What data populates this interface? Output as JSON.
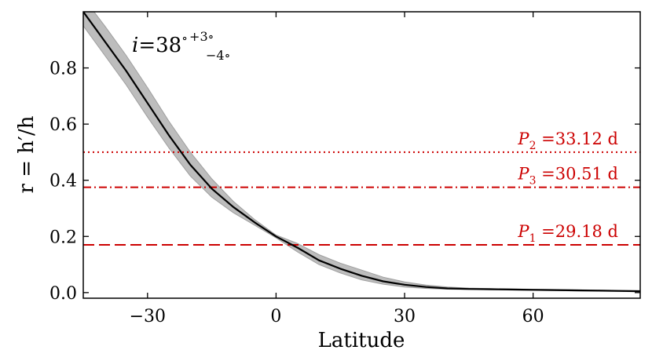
{
  "chart_data": {
    "type": "line",
    "xlabel": "Latitude",
    "ylabel": "r = h′/h",
    "xlim": [
      -45,
      85
    ],
    "ylim": [
      -0.02,
      1.0
    ],
    "xticks": [
      -30,
      0,
      30,
      60
    ],
    "xtick_labels": [
      "−30",
      "0",
      "30",
      "60"
    ],
    "yticks": [
      0.0,
      0.2,
      0.4,
      0.6,
      0.8
    ],
    "ytick_labels": [
      "0.0",
      "0.2",
      "0.4",
      "0.6",
      "0.8"
    ],
    "grid": false,
    "annotation": {
      "var": "i",
      "eq": "=38",
      "deg": "∘",
      "sup": "+3∘",
      "sub": "−4∘"
    },
    "series": [
      {
        "kind": "line",
        "color": "#000000",
        "x": [
          -45,
          -40,
          -35,
          -30,
          -25,
          -20,
          -15,
          -10,
          -5,
          0,
          5,
          10,
          15,
          20,
          25,
          30,
          35,
          40,
          45,
          50,
          55,
          60,
          65,
          70,
          75,
          80,
          85
        ],
        "y": [
          1.0,
          0.895,
          0.79,
          0.675,
          0.56,
          0.455,
          0.37,
          0.305,
          0.25,
          0.2,
          0.16,
          0.115,
          0.085,
          0.06,
          0.04,
          0.028,
          0.02,
          0.015,
          0.013,
          0.012,
          0.011,
          0.01,
          0.009,
          0.008,
          0.007,
          0.006,
          0.005
        ]
      },
      {
        "kind": "band",
        "color": "#bdbdbd",
        "x": [
          -45,
          -40,
          -35,
          -30,
          -25,
          -20,
          -15,
          -10,
          -5,
          0,
          5,
          10,
          15,
          20,
          25,
          30,
          35,
          40,
          45,
          50,
          55,
          60,
          65,
          70,
          75,
          80,
          85
        ],
        "lower": [
          0.95,
          0.845,
          0.74,
          0.625,
          0.515,
          0.415,
          0.34,
          0.285,
          0.24,
          0.195,
          0.145,
          0.1,
          0.07,
          0.045,
          0.03,
          0.02,
          0.015,
          0.012,
          0.011,
          0.01,
          0.009,
          0.008,
          0.007,
          0.006,
          0.005,
          0.004,
          0.003
        ],
        "upper": [
          1.05,
          0.95,
          0.845,
          0.73,
          0.61,
          0.5,
          0.405,
          0.325,
          0.26,
          0.205,
          0.175,
          0.135,
          0.105,
          0.08,
          0.055,
          0.038,
          0.027,
          0.02,
          0.016,
          0.014,
          0.013,
          0.012,
          0.011,
          0.01,
          0.009,
          0.008,
          0.007
        ]
      }
    ],
    "reference_lines": [
      {
        "name": "P2",
        "sym": "P",
        "sub": "2",
        "text": "=33.12 d",
        "y": 0.5,
        "style": "dotted",
        "color": "#cc0000"
      },
      {
        "name": "P3",
        "sym": "P",
        "sub": "3",
        "text": "=30.51 d",
        "y": 0.375,
        "style": "dashdot",
        "color": "#cc0000"
      },
      {
        "name": "P1",
        "sym": "P",
        "sub": "1",
        "text": "=29.18 d",
        "y": 0.17,
        "style": "dashed",
        "color": "#cc0000"
      }
    ]
  }
}
